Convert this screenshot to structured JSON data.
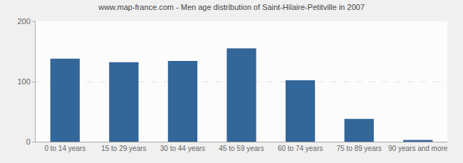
{
  "chart_data": {
    "type": "bar",
    "title": "www.map-france.com - Men age distribution of Saint-Hilaire-Petitville in 2007",
    "categories": [
      "0 to 14 years",
      "15 to 29 years",
      "30 to 44 years",
      "45 to 59 years",
      "60 to 74 years",
      "75 to 89 years",
      "90 years and more"
    ],
    "values": [
      138,
      132,
      134,
      155,
      102,
      38,
      3
    ],
    "color": "#336699",
    "ylim": [
      0,
      200
    ],
    "yticks": [
      0,
      100,
      200
    ],
    "grid": true
  }
}
